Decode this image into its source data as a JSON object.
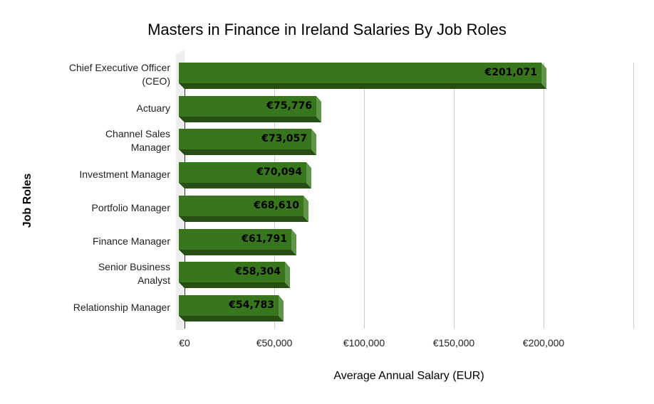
{
  "chart_data": {
    "type": "bar",
    "orientation": "horizontal",
    "title": "Masters in Finance in Ireland Salaries By Job Roles",
    "xlabel": "Average Annual Salary (EUR)",
    "ylabel": "Job Roles",
    "categories": [
      "Chief Executive Officer (CEO)",
      "Actuary",
      "Channel Sales Manager",
      "Investment Manager",
      "Portfolio Manager",
      "Finance Manager",
      "Senior Business Analyst",
      "Relationship Manager"
    ],
    "category_lines": [
      [
        "Chief Executive Officer",
        "(CEO)"
      ],
      [
        "Actuary"
      ],
      [
        "Channel Sales",
        "Manager"
      ],
      [
        "Investment Manager"
      ],
      [
        "Portfolio Manager"
      ],
      [
        "Finance Manager"
      ],
      [
        "Senior Business",
        "Analyst"
      ],
      [
        "Relationship Manager"
      ]
    ],
    "values": [
      201071,
      75776,
      73057,
      70094,
      68610,
      61791,
      58304,
      54783
    ],
    "data_labels": [
      "€201,071",
      "€75,776",
      "€73,057",
      "€70,094",
      "€68,610",
      "€61,791",
      "€58,304",
      "€54,783"
    ],
    "x_ticks": [
      0,
      50000,
      100000,
      150000,
      200000,
      250000
    ],
    "x_tick_labels": [
      "€0",
      "€50,000",
      "€100,000",
      "€150,000",
      "€200,000",
      ""
    ],
    "xlim": [
      0,
      250000
    ],
    "grid": true,
    "legend": "none",
    "style": "3d",
    "colors": {
      "bar_face": "#38761d",
      "bar_bottom": "#274e13",
      "bar_side": "#5e9548",
      "grid": "#cccccc"
    }
  }
}
